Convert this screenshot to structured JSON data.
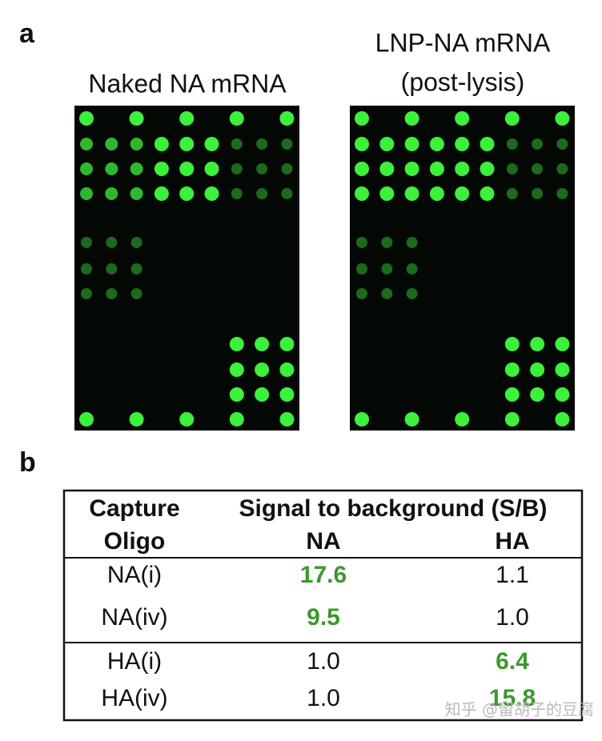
{
  "panel_a": {
    "label": "a",
    "images": [
      {
        "title": [
          "Naked NA mRNA"
        ]
      },
      {
        "title": [
          "LNP-NA mRNA",
          "(post-lysis)"
        ]
      }
    ]
  },
  "panel_b": {
    "label": "b",
    "table": {
      "header": {
        "row_label": [
          "Capture",
          "Oligo"
        ],
        "group": "Signal to background (S/B)",
        "columns": [
          "NA",
          "HA"
        ]
      },
      "rows": [
        {
          "label": "NA(i)",
          "values": [
            "17.6",
            "1.1"
          ]
        },
        {
          "label": "NA(iv)",
          "values": [
            "9.5",
            "1.0"
          ]
        },
        {
          "label": "HA(i)",
          "values": [
            "1.0",
            "6.4"
          ]
        },
        {
          "label": "HA(iv)",
          "values": [
            "1.0",
            "15.8"
          ]
        }
      ]
    }
  },
  "watermark": "知乎 @留胡子的豆腐"
}
